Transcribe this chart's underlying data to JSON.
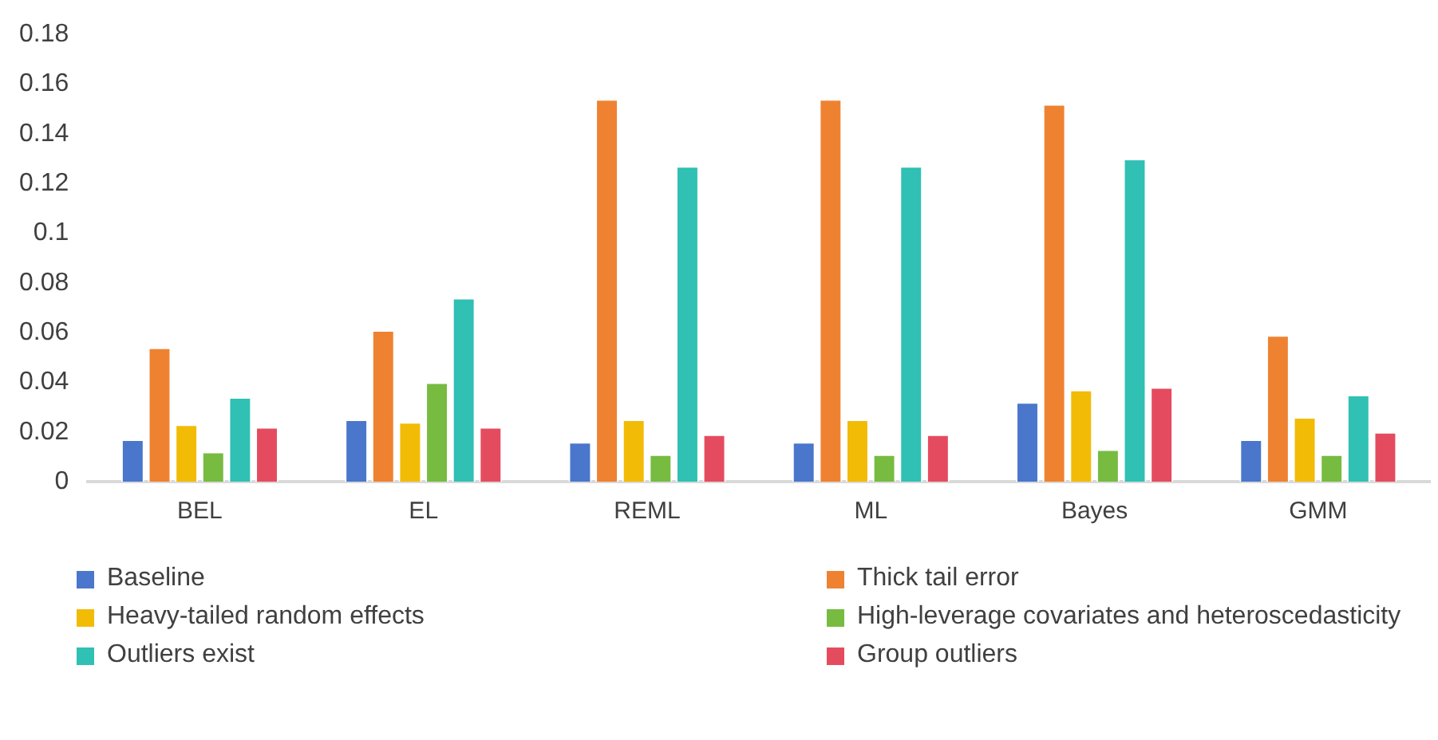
{
  "chart_data": {
    "type": "bar",
    "categories": [
      "BEL",
      "EL",
      "REML",
      "ML",
      "Bayes",
      "GMM"
    ],
    "series": [
      {
        "name": "Baseline",
        "color": "#4a76cc",
        "values": [
          0.017,
          0.025,
          0.016,
          0.016,
          0.032,
          0.017
        ]
      },
      {
        "name": "Thick tail error",
        "color": "#ef8231",
        "values": [
          0.054,
          0.061,
          0.154,
          0.154,
          0.152,
          0.059
        ]
      },
      {
        "name": "Heavy-tailed random effects",
        "color": "#f2bb06",
        "values": [
          0.023,
          0.024,
          0.025,
          0.025,
          0.037,
          0.026
        ]
      },
      {
        "name": "High-leverage covariates and heteroscedasticity",
        "color": "#77bb41",
        "values": [
          0.012,
          0.04,
          0.011,
          0.011,
          0.013,
          0.011
        ]
      },
      {
        "name": "Outliers exist",
        "color": "#30c0b4",
        "values": [
          0.034,
          0.074,
          0.127,
          0.127,
          0.13,
          0.035
        ]
      },
      {
        "name": "Group outliers",
        "color": "#e54b5f",
        "values": [
          0.022,
          0.022,
          0.019,
          0.019,
          0.038,
          0.02
        ]
      }
    ],
    "ylim": [
      0,
      0.18
    ],
    "yticks": [
      0,
      0.02,
      0.04,
      0.06,
      0.08,
      0.1,
      0.12,
      0.14,
      0.16,
      0.18
    ],
    "grid": false,
    "legend": "bottom"
  }
}
